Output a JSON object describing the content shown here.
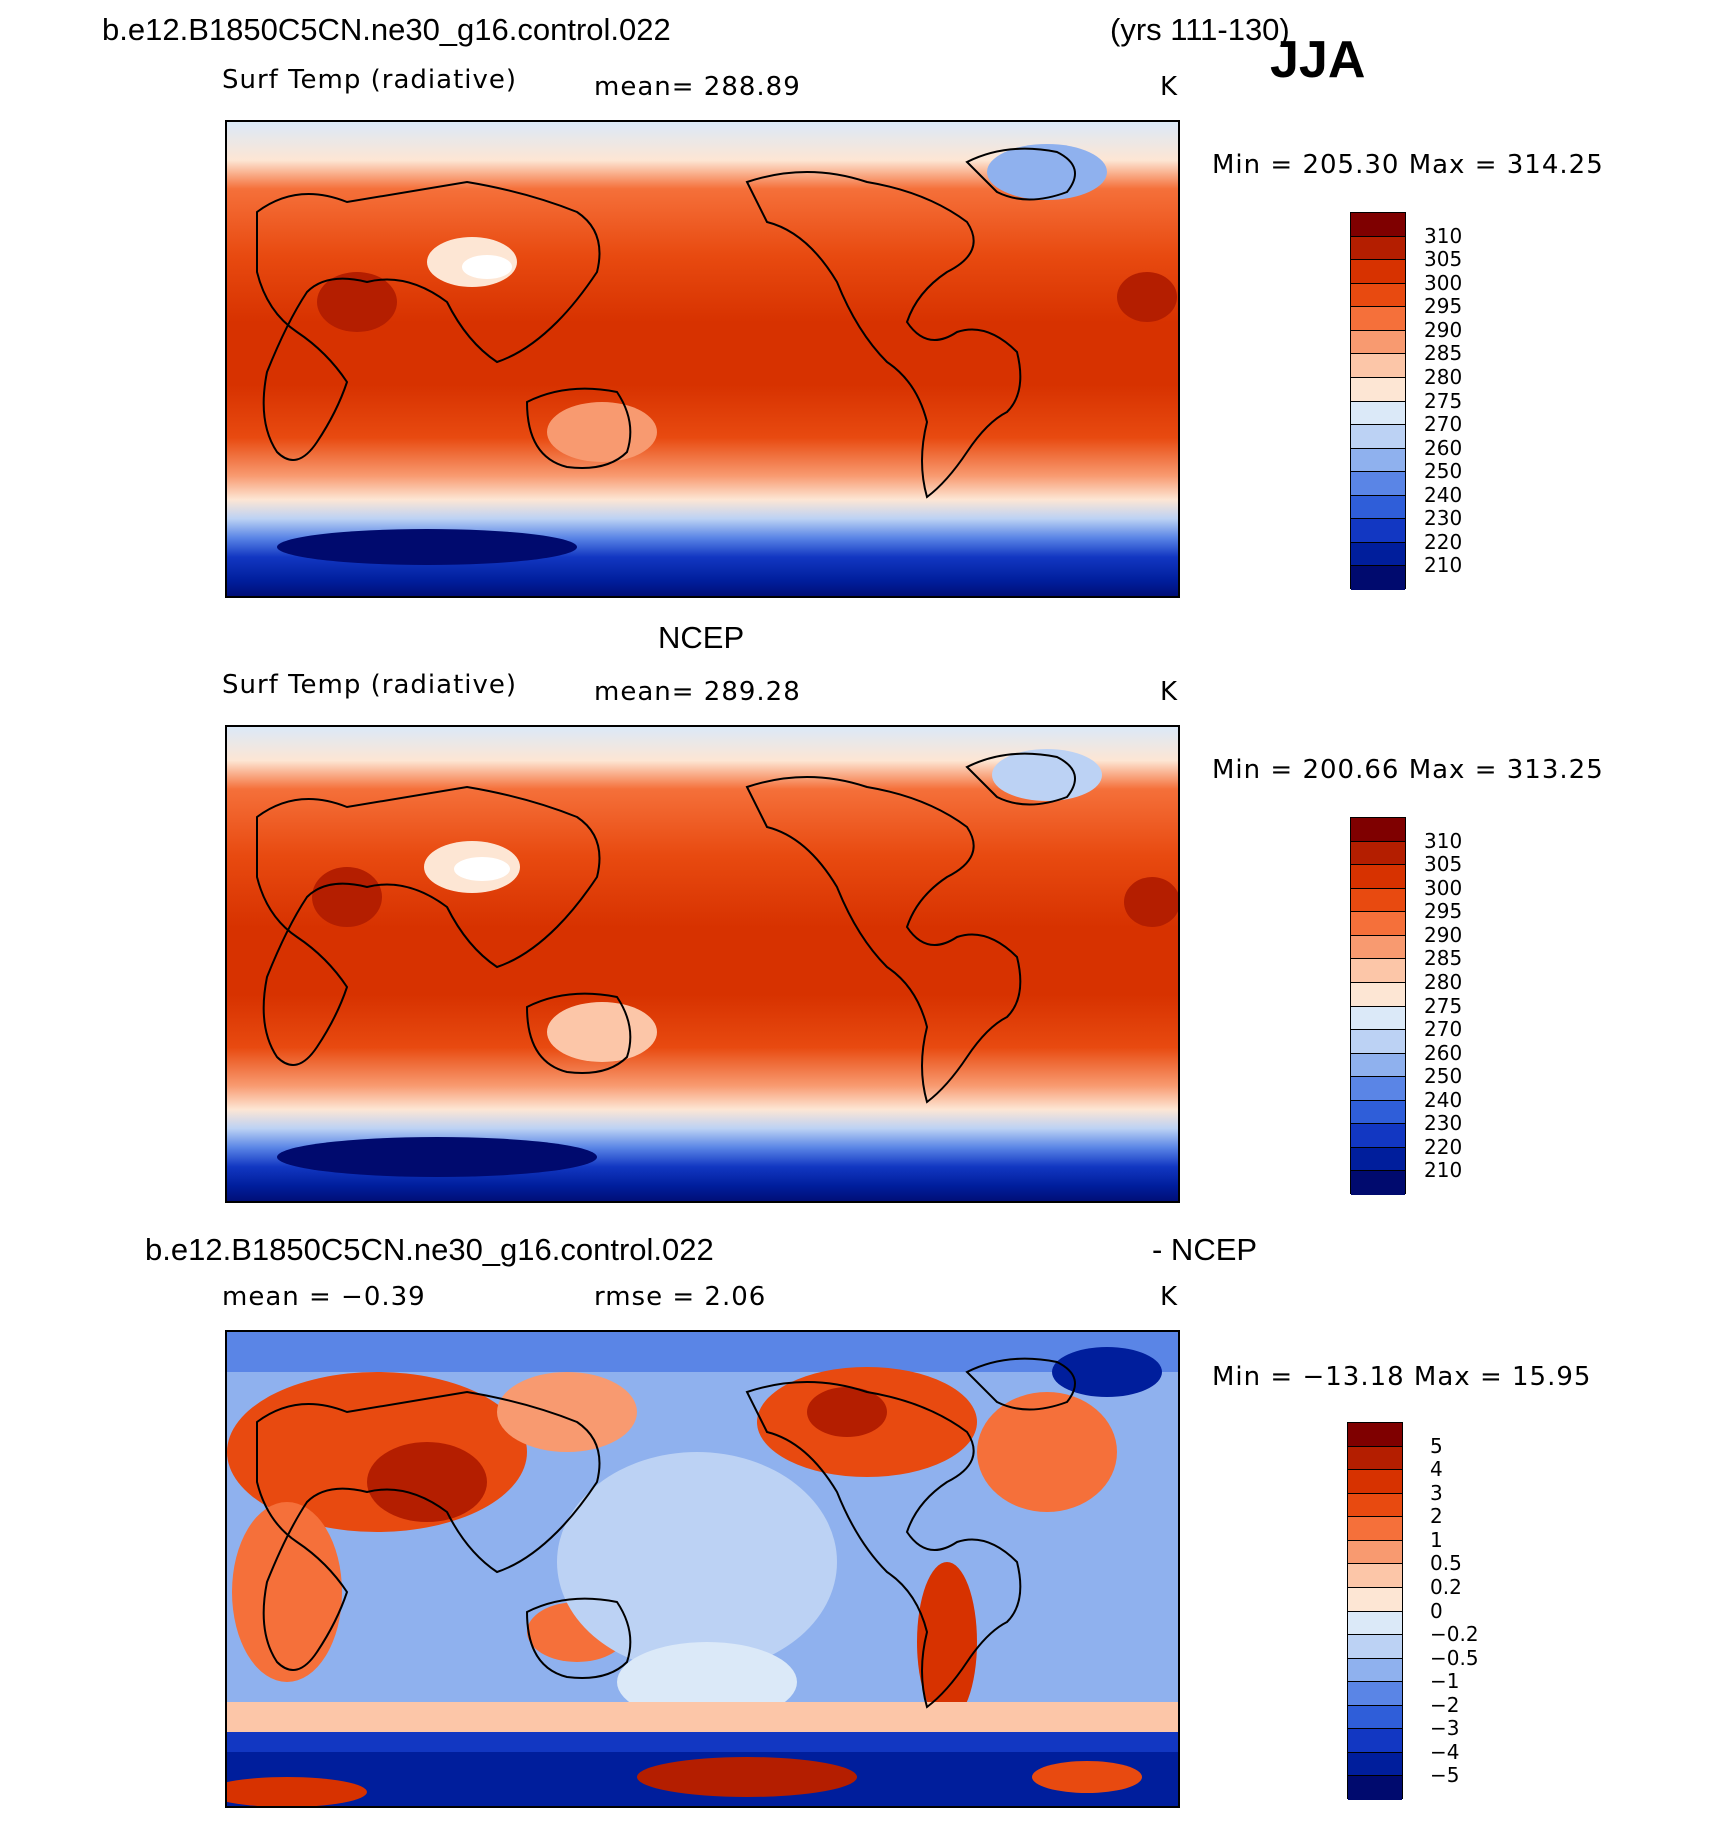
{
  "header": {
    "case_name": "b.e12.B1850C5CN.ne30_g16.control.022",
    "years": "(yrs 111-130)",
    "season": "JJA"
  },
  "panels": [
    {
      "id": "model",
      "title": "",
      "variable": "Surf Temp (radiative)",
      "stat_text": "mean=  288.89",
      "units": "K",
      "minmax_text": "Min  =  205.30  Max  =  314.25",
      "colorbar": {
        "labels": [
          "310",
          "305",
          "300",
          "295",
          "290",
          "285",
          "280",
          "275",
          "270",
          "260",
          "250",
          "240",
          "230",
          "220",
          "210"
        ],
        "colors": [
          "#7f0000",
          "#b41e00",
          "#d73200",
          "#e84a10",
          "#f5703a",
          "#f89a70",
          "#fcc6a8",
          "#fde6d4",
          "#dbe9f8",
          "#bcd2f4",
          "#8fb1ee",
          "#5a85e6",
          "#2f5ed9",
          "#1237c2",
          "#001e9c",
          "#000a6e"
        ]
      }
    },
    {
      "id": "obs",
      "title": "NCEP",
      "variable": "Surf Temp (radiative)",
      "stat_text": "mean=  289.28",
      "units": "K",
      "minmax_text": "Min  =  200.66  Max  =  313.25",
      "colorbar": {
        "labels": [
          "310",
          "305",
          "300",
          "295",
          "290",
          "285",
          "280",
          "275",
          "270",
          "260",
          "250",
          "240",
          "230",
          "220",
          "210"
        ],
        "colors": [
          "#7f0000",
          "#b41e00",
          "#d73200",
          "#e84a10",
          "#f5703a",
          "#f89a70",
          "#fcc6a8",
          "#fde6d4",
          "#dbe9f8",
          "#bcd2f4",
          "#8fb1ee",
          "#5a85e6",
          "#2f5ed9",
          "#1237c2",
          "#001e9c",
          "#000a6e"
        ]
      }
    },
    {
      "id": "diff",
      "title_left": "b.e12.B1850C5CN.ne30_g16.control.022",
      "title_right": "- NCEP",
      "variable": "mean =    −0.39",
      "stat_text": "rmse =     2.06",
      "units": "K",
      "minmax_text": "Min  =  −13.18  Max  =    15.95",
      "colorbar": {
        "labels": [
          "5",
          "4",
          "3",
          "2",
          "1",
          "0.5",
          "0.2",
          "0",
          "−0.2",
          "−0.5",
          "−1",
          "−2",
          "−3",
          "−4",
          "−5"
        ],
        "colors": [
          "#7f0000",
          "#b41e00",
          "#d73200",
          "#e84a10",
          "#f5703a",
          "#f89a70",
          "#fcc6a8",
          "#fde6d4",
          "#dbe9f8",
          "#bcd2f4",
          "#8fb1ee",
          "#5a85e6",
          "#2f5ed9",
          "#1237c2",
          "#001e9c",
          "#000a6e"
        ]
      }
    }
  ],
  "colors": {
    "tropics_warm": "#d73200",
    "polar_cold": "#001e9c",
    "coastline": "#000000"
  }
}
